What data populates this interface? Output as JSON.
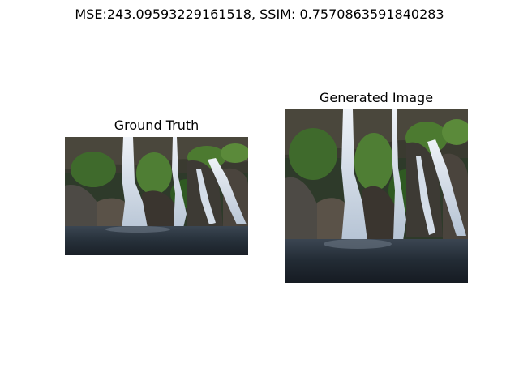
{
  "figure": {
    "title": "MSE:243.09593229161518, SSIM: 0.7570863591840283"
  },
  "panels": [
    {
      "title": "Ground Truth",
      "image": "waterfall-photo"
    },
    {
      "title": "Generated Image",
      "image": "waterfall-photo"
    }
  ]
}
